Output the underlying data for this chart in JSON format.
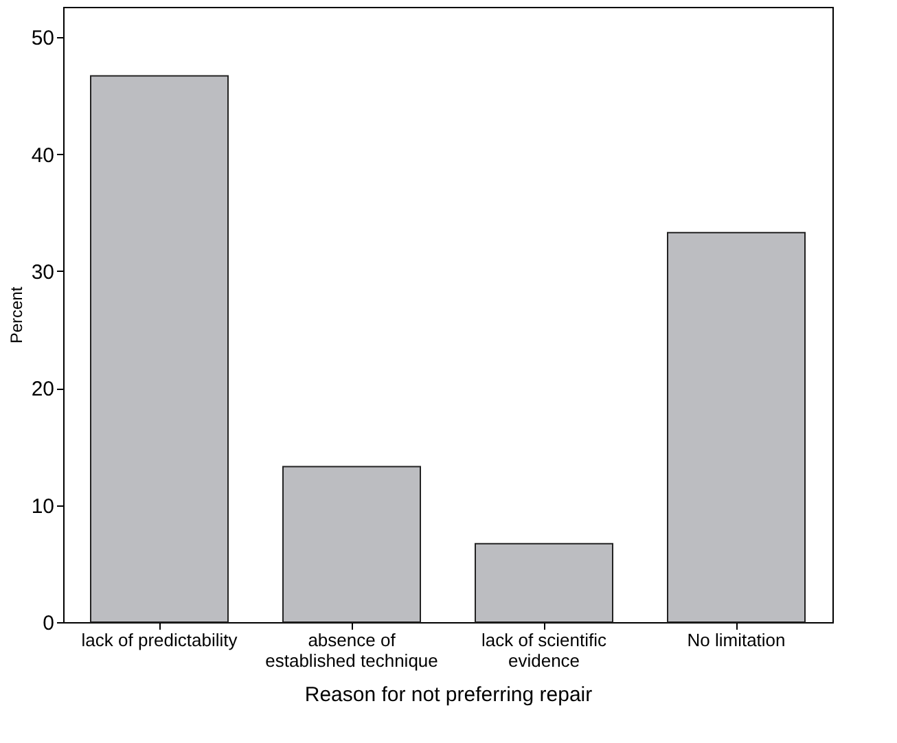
{
  "chart_data": {
    "type": "bar",
    "xlabel": "Reason for not preferring repair",
    "ylabel": "Percent",
    "categories": [
      "lack of predictability",
      "absence of\nestablished technique",
      "lack of scientific\nevidence",
      "No limitation"
    ],
    "values": [
      46.7,
      13.3,
      6.7,
      33.3
    ],
    "color": "#bcbdc1",
    "ylim": [
      0,
      52.6
    ],
    "yticks": [
      0,
      10,
      20,
      30,
      40,
      50
    ],
    "grid": false
  }
}
